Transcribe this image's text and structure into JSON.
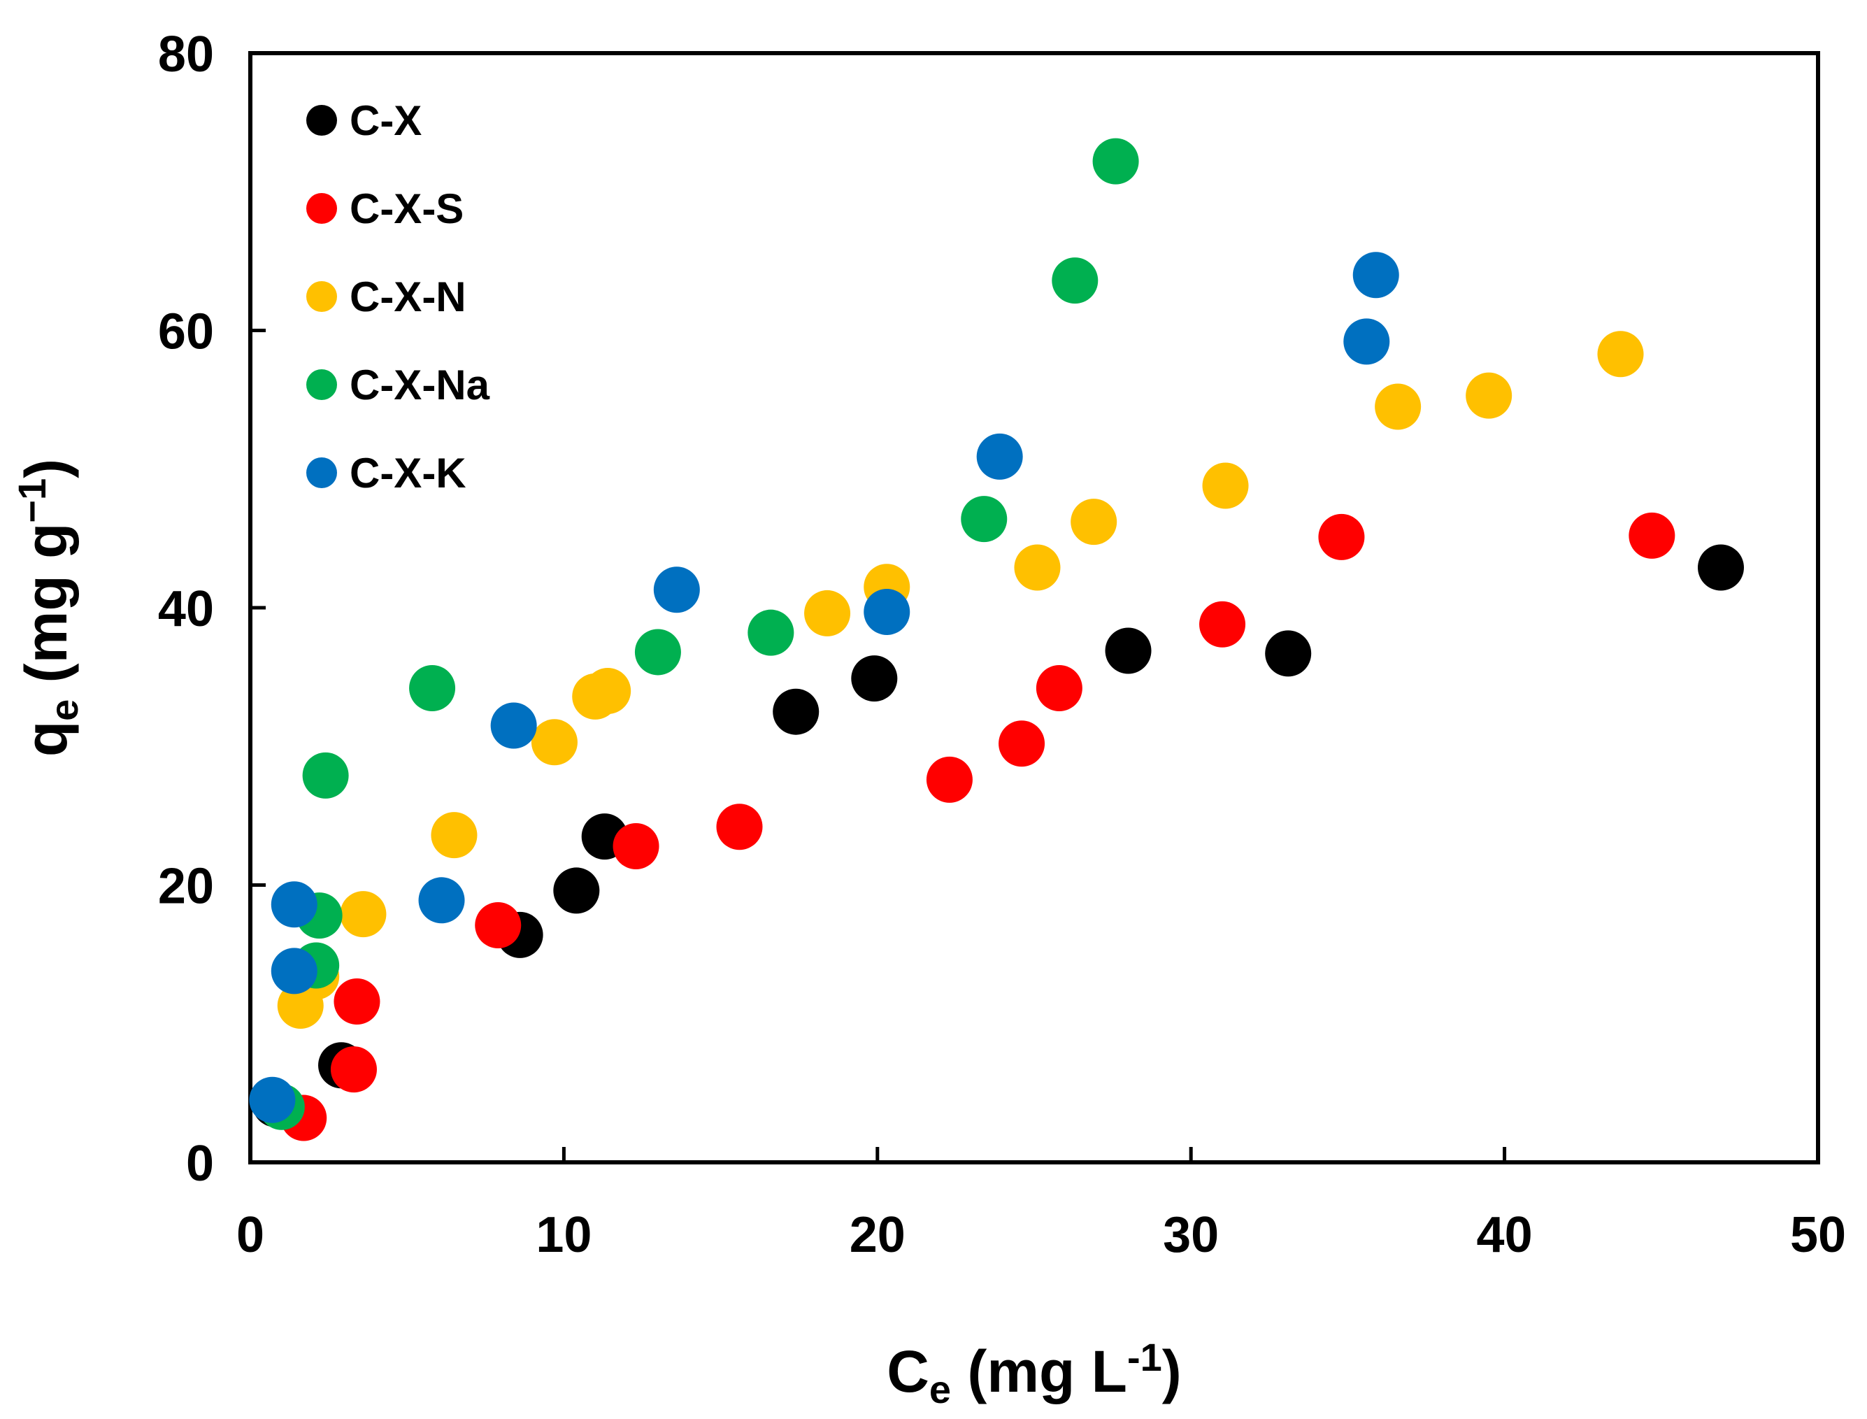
{
  "chart_data": {
    "type": "scatter",
    "x_axis": {
      "label_main": "C",
      "label_sub": "e",
      "label_rest": " (mg L",
      "label_sup": "-1",
      "label_end": ")",
      "range": [
        0,
        50
      ],
      "ticks": [
        "0",
        "10",
        "20",
        "30",
        "40",
        "50"
      ]
    },
    "y_axis": {
      "label_main": "q",
      "label_sub": "e",
      "label_rest": " (mg g",
      "label_sup": "−1",
      "label_end": ")",
      "range": [
        0,
        80
      ],
      "ticks": [
        "0",
        "20",
        "40",
        "60",
        "80"
      ]
    },
    "grid": false,
    "legend_position": "top-left",
    "series": [
      {
        "name": "C-X",
        "color": "#000000",
        "points": [
          [
            0.8,
            4.2
          ],
          [
            2.9,
            7.0
          ],
          [
            8.6,
            16.4
          ],
          [
            10.4,
            19.6
          ],
          [
            11.3,
            23.5
          ],
          [
            17.4,
            32.5
          ],
          [
            19.9,
            34.9
          ],
          [
            28.0,
            36.9
          ],
          [
            33.1,
            36.7
          ],
          [
            46.9,
            42.9
          ]
        ]
      },
      {
        "name": "C-X-S",
        "color": "#ff0000",
        "points": [
          [
            1.7,
            3.2
          ],
          [
            3.3,
            6.7
          ],
          [
            3.4,
            11.6
          ],
          [
            7.9,
            17.1
          ],
          [
            12.3,
            22.8
          ],
          [
            15.6,
            24.2
          ],
          [
            22.3,
            27.6
          ],
          [
            24.6,
            30.2
          ],
          [
            25.8,
            34.2
          ],
          [
            31.0,
            38.8
          ],
          [
            34.8,
            45.1
          ],
          [
            44.7,
            45.2
          ]
        ]
      },
      {
        "name": "C-X-N",
        "color": "#ffc000",
        "points": [
          [
            1.6,
            11.3
          ],
          [
            2.1,
            13.4
          ],
          [
            3.6,
            17.9
          ],
          [
            6.5,
            23.6
          ],
          [
            9.7,
            30.3
          ],
          [
            11.0,
            33.6
          ],
          [
            11.4,
            34.0
          ],
          [
            18.4,
            39.6
          ],
          [
            20.3,
            41.5
          ],
          [
            25.1,
            42.9
          ],
          [
            26.9,
            46.2
          ],
          [
            31.1,
            48.8
          ],
          [
            36.6,
            54.5
          ],
          [
            39.5,
            55.3
          ],
          [
            43.7,
            58.3
          ]
        ]
      },
      {
        "name": "C-X-Na",
        "color": "#00b050",
        "points": [
          [
            1.0,
            4.0
          ],
          [
            2.1,
            14.2
          ],
          [
            2.2,
            17.8
          ],
          [
            2.4,
            27.9
          ],
          [
            5.8,
            34.2
          ],
          [
            13.0,
            36.8
          ],
          [
            16.6,
            38.2
          ],
          [
            23.4,
            46.4
          ],
          [
            26.3,
            63.6
          ],
          [
            27.6,
            72.2
          ]
        ]
      },
      {
        "name": "C-X-K",
        "color": "#0070c0",
        "points": [
          [
            0.7,
            4.5
          ],
          [
            1.4,
            13.8
          ],
          [
            1.4,
            18.6
          ],
          [
            6.1,
            18.9
          ],
          [
            8.4,
            31.5
          ],
          [
            13.6,
            41.3
          ],
          [
            20.3,
            39.7
          ],
          [
            23.9,
            50.9
          ],
          [
            35.6,
            59.2
          ],
          [
            35.9,
            64.0
          ]
        ]
      }
    ]
  }
}
